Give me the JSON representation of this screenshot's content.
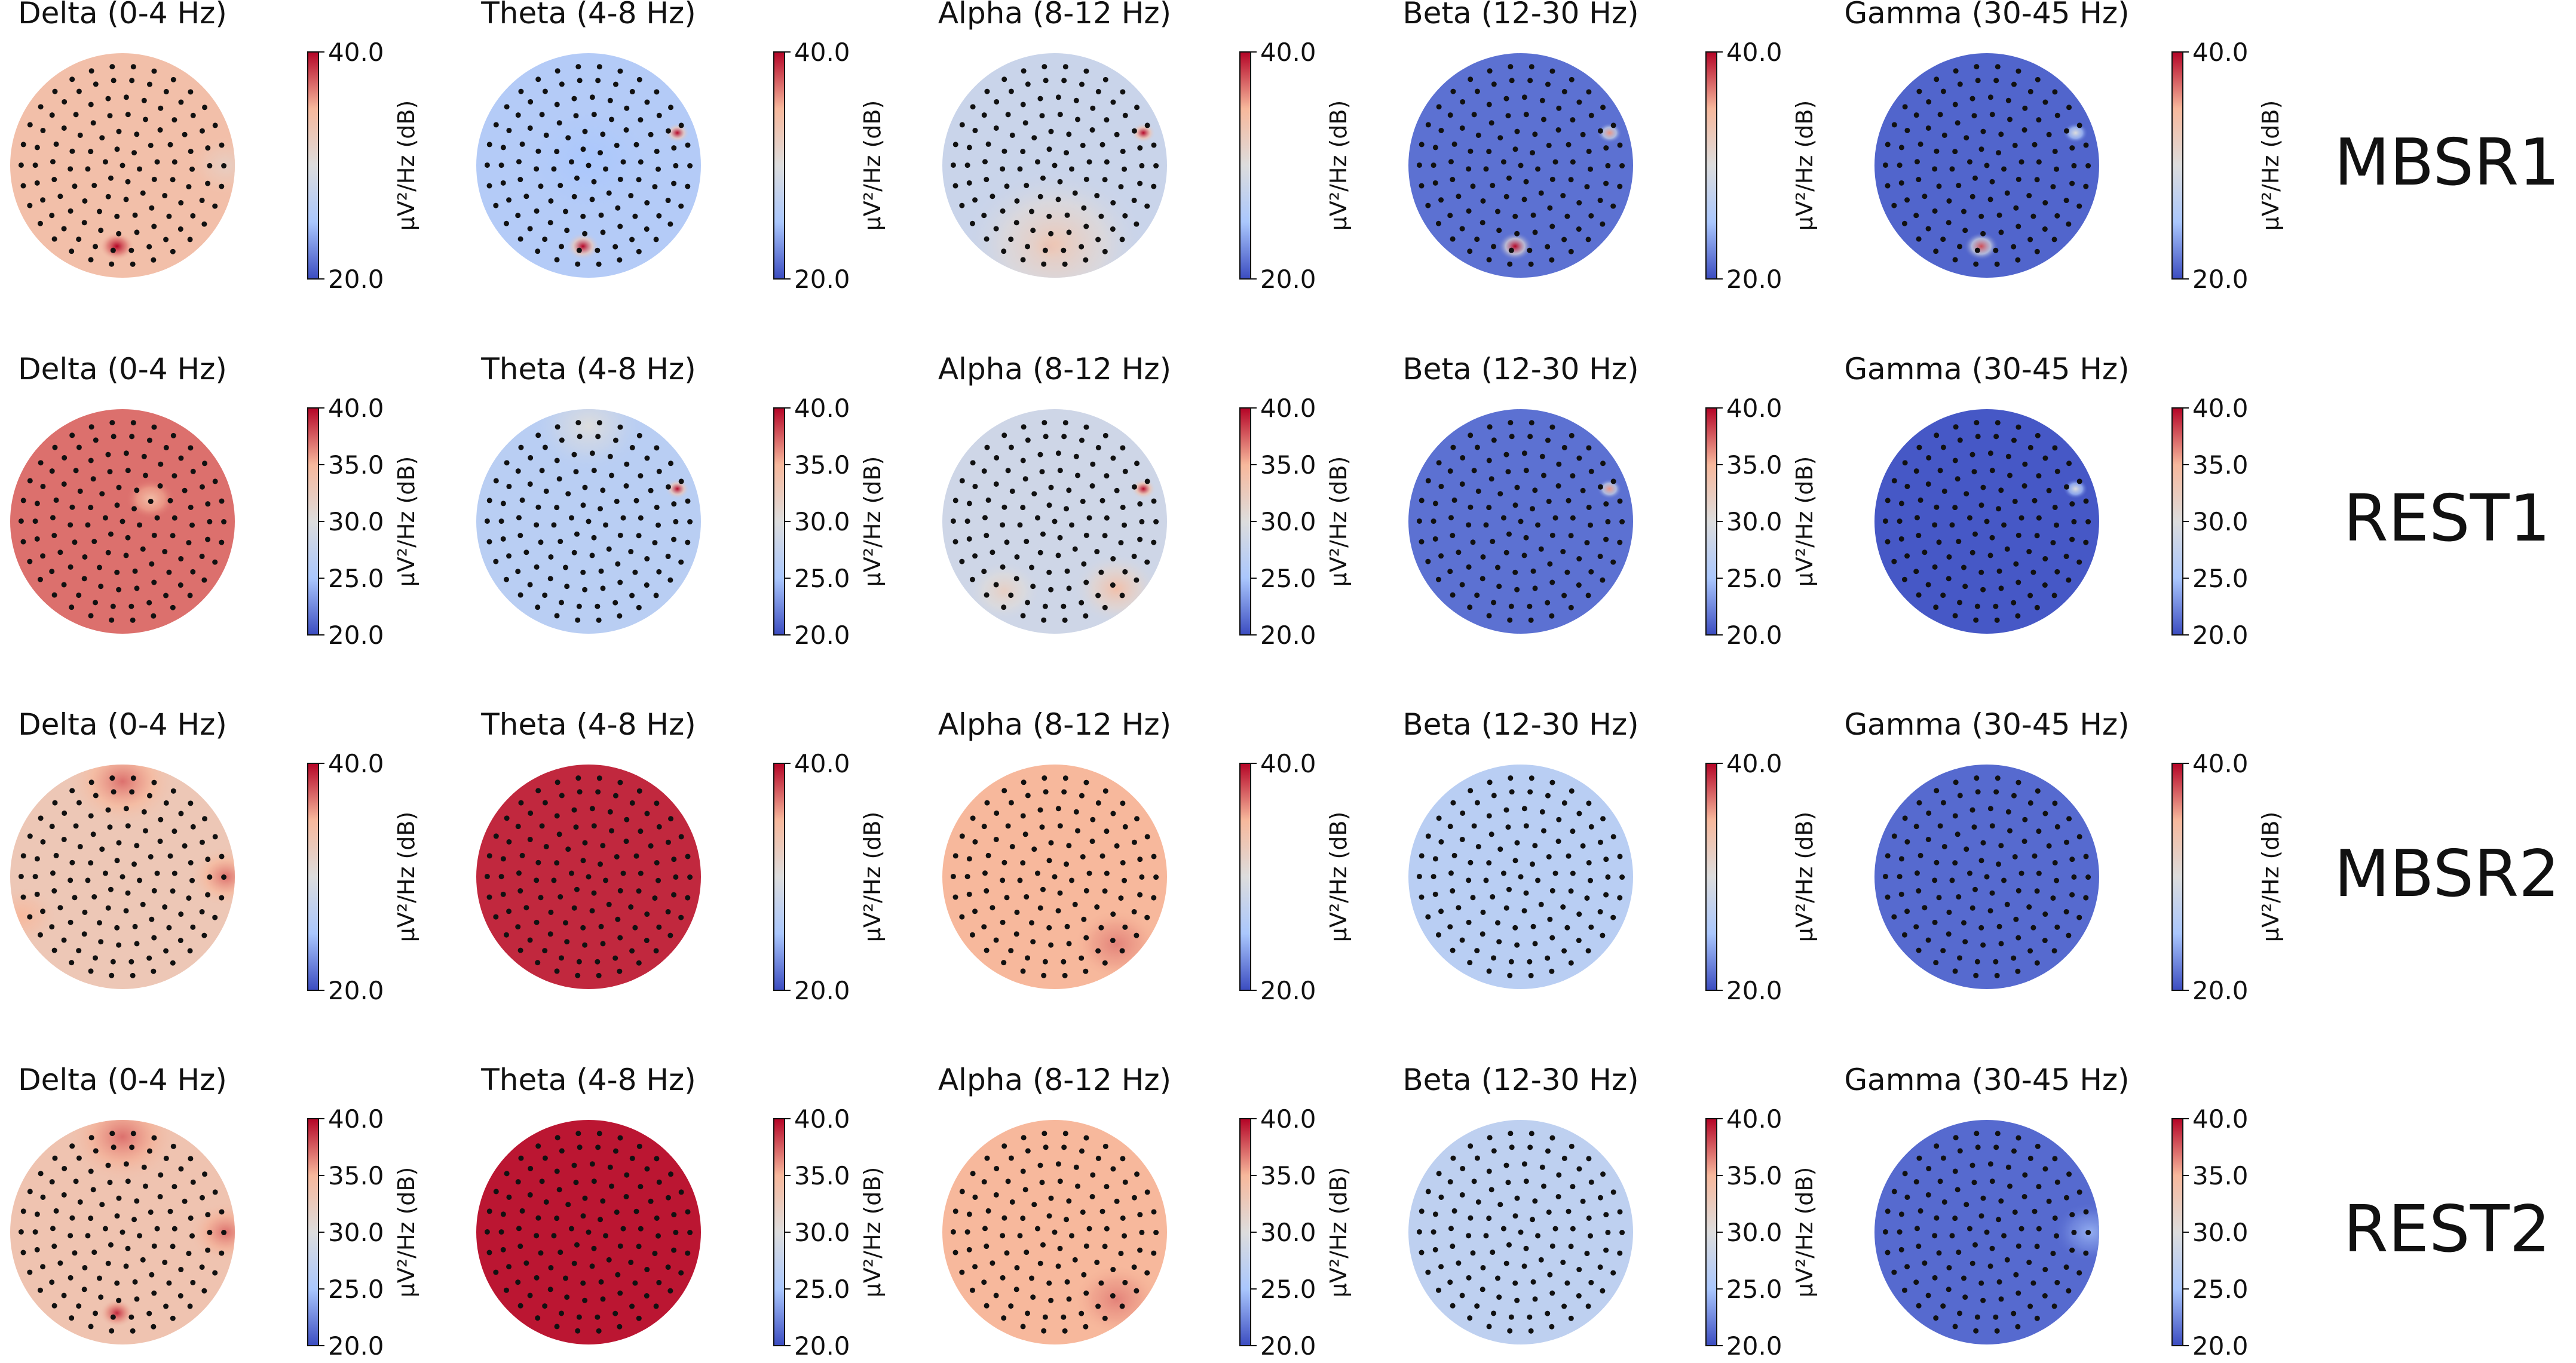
{
  "chart_data": {
    "type": "heatmap",
    "subtype": "eeg-topographic-map-grid",
    "colormap": "coolwarm",
    "colormap_stops": [
      "#3b4cc0",
      "#aac7fd",
      "#dddddd",
      "#f7b89c",
      "#b40426"
    ],
    "colorbar_label": "µV²/Hz (dB)",
    "bands": [
      "Delta (0-4 Hz)",
      "Theta (4-8 Hz)",
      "Alpha (8-12 Hz)",
      "Beta (12-30 Hz)",
      "Gamma (30-45 Hz)"
    ],
    "conditions": [
      {
        "name": "MBSR1",
        "colorbar_ticks": [
          "40.0",
          "20.0"
        ],
        "vmin": 20,
        "vmax": 40,
        "maps": [
          {
            "band": "Delta (0-4 Hz)",
            "base": 34,
            "spots": [
              {
                "at": "occipital",
                "value": 40
              },
              {
                "at": "right-edge",
                "value": 32
              }
            ]
          },
          {
            "band": "Theta (4-8 Hz)",
            "base": 26,
            "spots": [
              {
                "at": "occipital",
                "value": 40
              },
              {
                "at": "right-temporal",
                "value": 40
              },
              {
                "at": "central",
                "value": 25
              }
            ]
          },
          {
            "band": "Alpha (8-12 Hz)",
            "base": 28,
            "spots": [
              {
                "at": "occipital",
                "value": 40
              },
              {
                "at": "right-temporal",
                "value": 40
              },
              {
                "at": "posterior",
                "value": 33
              }
            ]
          },
          {
            "band": "Beta (12-30 Hz)",
            "base": 21.5,
            "spots": [
              {
                "at": "occipital",
                "value": 40
              },
              {
                "at": "right-temporal",
                "value": 36
              }
            ]
          },
          {
            "band": "Gamma (30-45 Hz)",
            "base": 21,
            "spots": [
              {
                "at": "occipital",
                "value": 38
              },
              {
                "at": "right-temporal",
                "value": 30
              }
            ]
          }
        ]
      },
      {
        "name": "REST1",
        "colorbar_ticks": [
          "40.0",
          "35.0",
          "30.0",
          "25.0",
          "20.0"
        ],
        "vmin": 20,
        "vmax": 40,
        "maps": [
          {
            "band": "Delta (0-4 Hz)",
            "base": 37,
            "spots": [
              {
                "at": "center-right",
                "value": 34
              }
            ]
          },
          {
            "band": "Theta (4-8 Hz)",
            "base": 26.5,
            "spots": [
              {
                "at": "right-temporal",
                "value": 40
              },
              {
                "at": "frontal",
                "value": 30
              }
            ]
          },
          {
            "band": "Alpha (8-12 Hz)",
            "base": 28.5,
            "spots": [
              {
                "at": "right-temporal",
                "value": 40
              },
              {
                "at": "posterior-right",
                "value": 34
              },
              {
                "at": "posterior-left",
                "value": 32
              }
            ]
          },
          {
            "band": "Beta (12-30 Hz)",
            "base": 21.5,
            "spots": [
              {
                "at": "right-temporal",
                "value": 36
              }
            ]
          },
          {
            "band": "Gamma (30-45 Hz)",
            "base": 20.5,
            "spots": [
              {
                "at": "right-temporal",
                "value": 30
              }
            ]
          }
        ]
      },
      {
        "name": "MBSR2",
        "colorbar_ticks": [
          "40.0",
          "20.0"
        ],
        "vmin": 20,
        "vmax": 40,
        "maps": [
          {
            "band": "Delta (0-4 Hz)",
            "base": 33,
            "spots": [
              {
                "at": "frontal",
                "value": 37
              },
              {
                "at": "right-edge",
                "value": 37
              },
              {
                "at": "left-edge",
                "value": 35
              }
            ]
          },
          {
            "band": "Theta (4-8 Hz)",
            "base": 39,
            "spots": []
          },
          {
            "band": "Alpha (8-12 Hz)",
            "base": 35,
            "spots": [
              {
                "at": "posterior-right",
                "value": 36.5
              }
            ]
          },
          {
            "band": "Beta (12-30 Hz)",
            "base": 26.5,
            "spots": []
          },
          {
            "band": "Gamma (30-45 Hz)",
            "base": 21.2,
            "spots": []
          }
        ]
      },
      {
        "name": "REST2",
        "colorbar_ticks": [
          "40.0",
          "35.0",
          "30.0",
          "25.0",
          "20.0"
        ],
        "vmin": 20,
        "vmax": 40,
        "maps": [
          {
            "band": "Delta (0-4 Hz)",
            "base": 33.5,
            "spots": [
              {
                "at": "occipital",
                "value": 39
              },
              {
                "at": "frontal",
                "value": 37
              },
              {
                "at": "right-edge",
                "value": 37
              }
            ]
          },
          {
            "band": "Theta (4-8 Hz)",
            "base": 39.5,
            "spots": []
          },
          {
            "band": "Alpha (8-12 Hz)",
            "base": 35,
            "spots": [
              {
                "at": "posterior-right",
                "value": 36.5
              }
            ]
          },
          {
            "band": "Beta (12-30 Hz)",
            "base": 27,
            "spots": []
          },
          {
            "band": "Gamma (30-45 Hz)",
            "base": 21.2,
            "spots": [
              {
                "at": "right-edge",
                "value": 24
              }
            ]
          }
        ]
      }
    ]
  }
}
